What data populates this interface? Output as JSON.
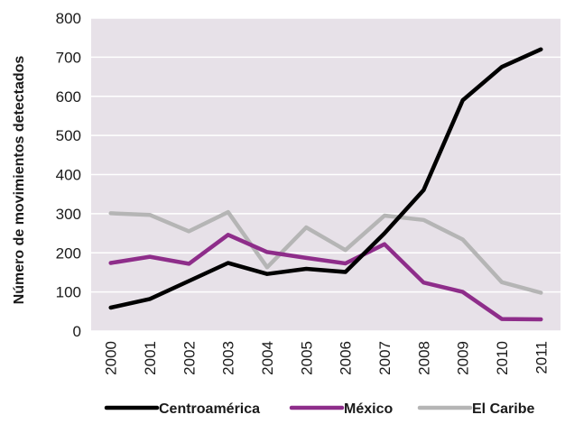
{
  "chart_data": {
    "type": "line",
    "title": "",
    "xlabel": "",
    "ylabel": "Número de movimientos detectados",
    "ylim": [
      0,
      800
    ],
    "yticks": [
      0,
      100,
      200,
      300,
      400,
      500,
      600,
      700,
      800
    ],
    "categories": [
      "2000",
      "2001",
      "2002",
      "2003",
      "2004",
      "2005",
      "2006",
      "2007",
      "2008",
      "2009",
      "2010",
      "2011"
    ],
    "grid": true,
    "background_color": "#e7e1e8",
    "legend_position": "bottom",
    "series": [
      {
        "name": "Centroamérica",
        "color": "#000000",
        "values": [
          60,
          82,
          128,
          174,
          146,
          159,
          151,
          250,
          360,
          590,
          675,
          720
        ]
      },
      {
        "name": "México",
        "color": "#8e2d8a",
        "values": [
          174,
          190,
          172,
          246,
          202,
          187,
          173,
          222,
          124,
          100,
          31,
          30
        ]
      },
      {
        "name": "El Caribe",
        "color": "#b5b5b5",
        "values": [
          301,
          297,
          255,
          304,
          163,
          265,
          207,
          295,
          284,
          234,
          125,
          98
        ]
      }
    ]
  }
}
